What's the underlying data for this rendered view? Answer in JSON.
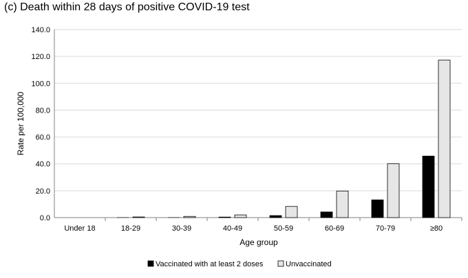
{
  "chart_data": {
    "type": "bar",
    "title": "(c) Death within 28 days of positive COVID-19 test",
    "xlabel": "Age group",
    "ylabel": "Rate per 100,000",
    "categories": [
      "Under 18",
      "18-29",
      "30-39",
      "40-49",
      "50-59",
      "60-69",
      "70-79",
      "≥80"
    ],
    "ylim": [
      0,
      140
    ],
    "yticks": [
      "0.0",
      "20.0",
      "40.0",
      "60.0",
      "80.0",
      "100.0",
      "120.0",
      "140.0"
    ],
    "grid": true,
    "legend_position": "bottom",
    "series": [
      {
        "name": "Vaccinated with at least 2 doses",
        "color": "#000000",
        "values": [
          0.0,
          0.1,
          0.1,
          0.4,
          1.5,
          4.2,
          13.2,
          45.8
        ]
      },
      {
        "name": "Unvaccinated",
        "color": "#e6e6e6",
        "values": [
          0.0,
          0.5,
          0.9,
          2.0,
          8.3,
          19.8,
          40.1,
          117.2
        ]
      }
    ]
  }
}
